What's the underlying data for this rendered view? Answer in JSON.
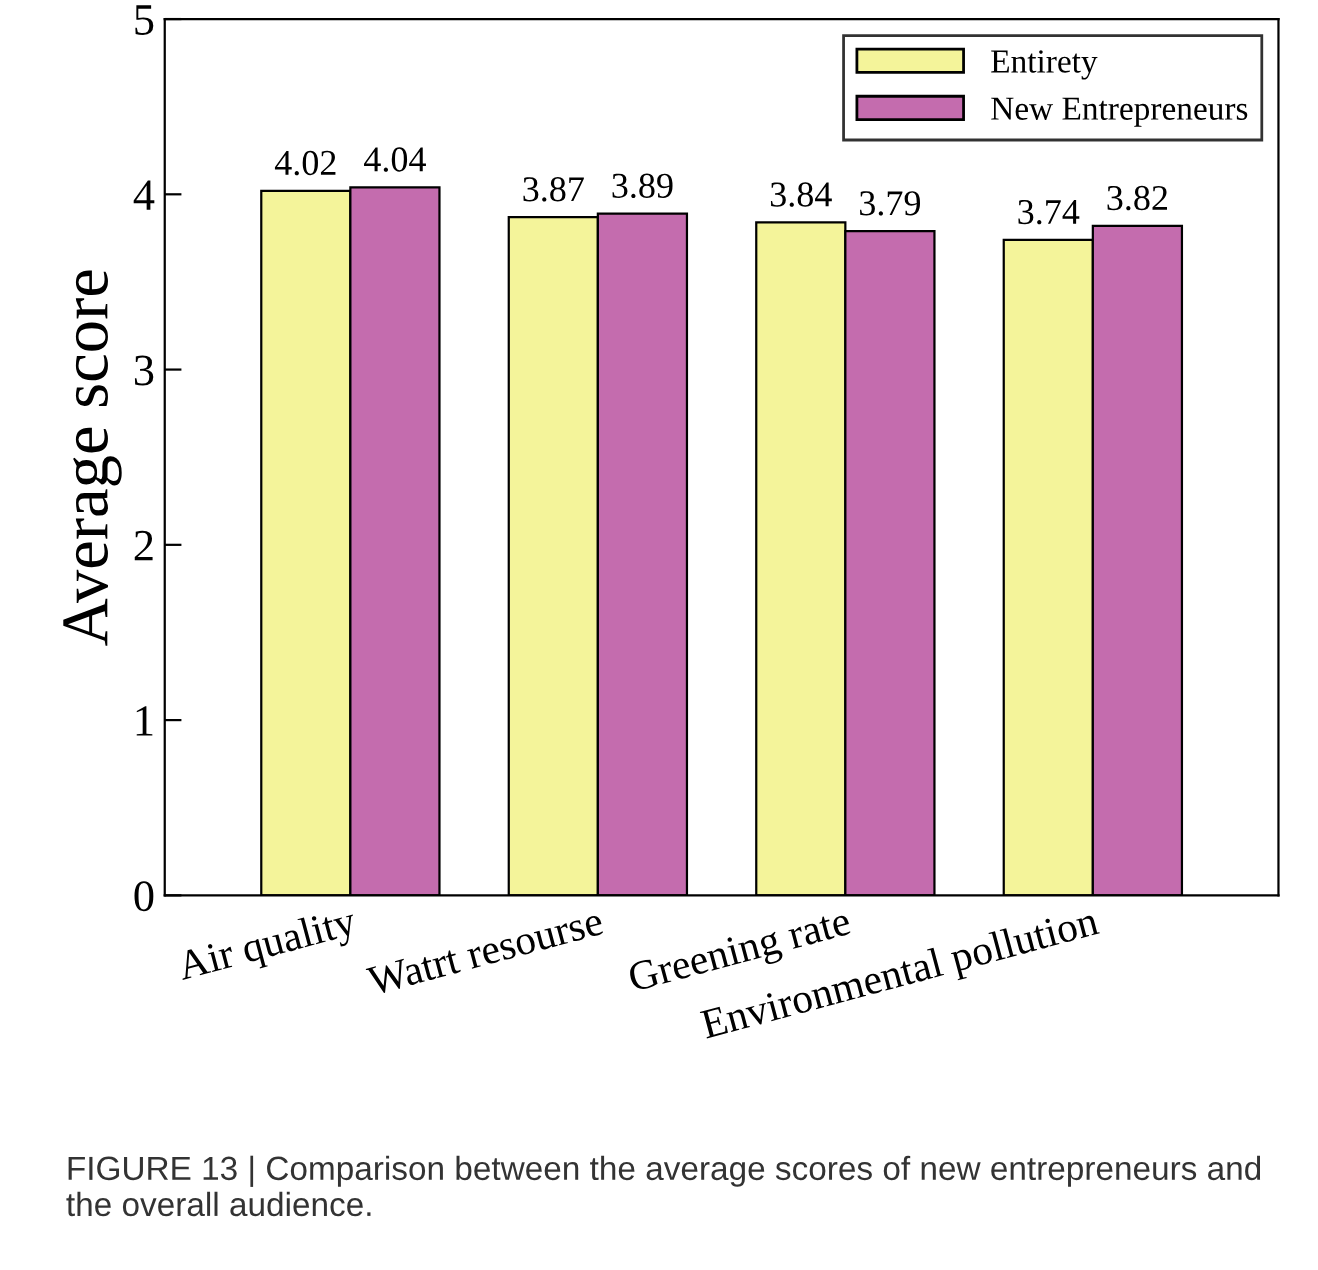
{
  "chart_data": {
    "type": "bar",
    "ylabel": "Average score",
    "categories": [
      "Air quality",
      "Watrt resourse",
      "Greening rate",
      "Environmental pollution"
    ],
    "series": [
      {
        "name": "Entirety",
        "color": "#f4f49a",
        "values": [
          4.02,
          3.87,
          3.84,
          3.74
        ]
      },
      {
        "name": "New Entrepreneurs",
        "color": "#c46cae",
        "values": [
          4.04,
          3.89,
          3.79,
          3.82
        ]
      }
    ],
    "ylim": [
      0,
      5
    ],
    "yticks": [
      0,
      1,
      2,
      3,
      4,
      5
    ],
    "data_labels": true,
    "legend": "top right",
    "grid": false,
    "annotations": [
      "FIGURE 13 | Comparison between the average scores of new entrepreneurs and the overall audience."
    ]
  }
}
